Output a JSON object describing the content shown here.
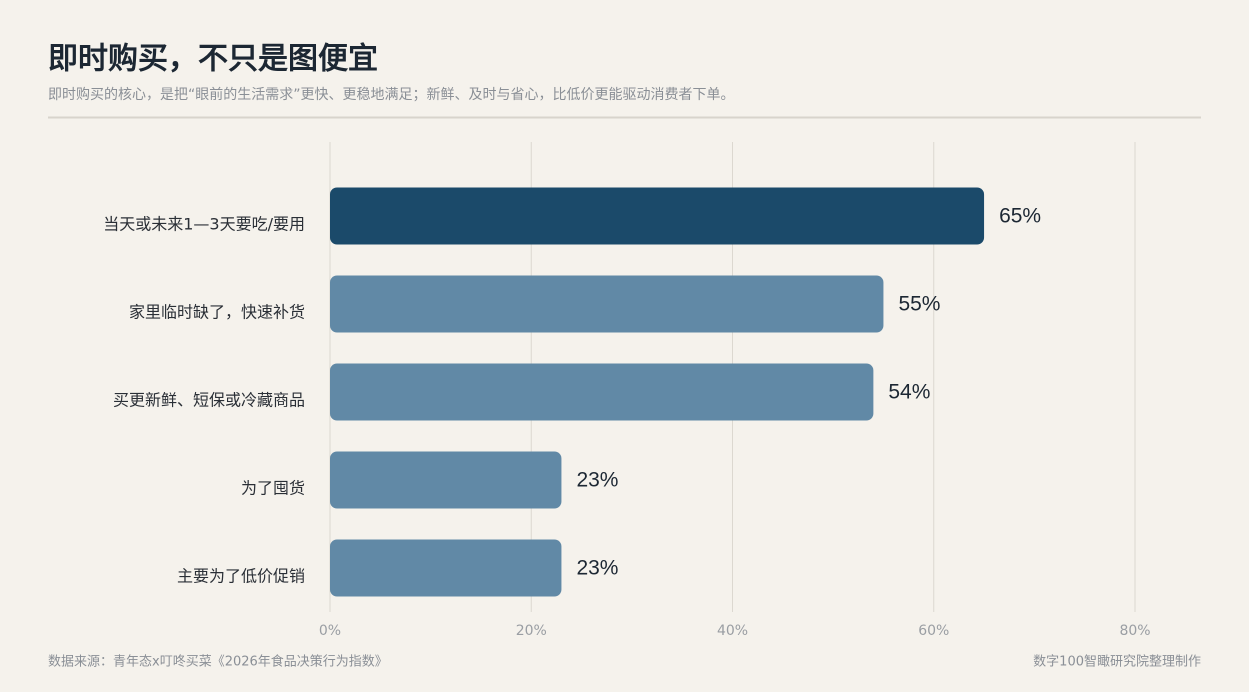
{
  "chart_data": {
    "type": "bar",
    "orientation": "horizontal",
    "title": "即时购买，不只是图便宜",
    "subtitle": "即时购买的核心，是把“眼前的生活需求”更快、更稳地满足；新鲜、及时与省心，比低价更能驱动消费者下单。",
    "categories": [
      "当天或未来1—3天要吃/要用",
      "家里临时缺了，快速补货",
      "买更新鲜、短保或冷藏商品",
      "为了囤货",
      "主要为了低价促销"
    ],
    "values": [
      65,
      55,
      54,
      23,
      23
    ],
    "value_labels": [
      "65%",
      "55%",
      "54%",
      "23%",
      "23%"
    ],
    "colors": [
      "#1b4a6a",
      "#6189a6",
      "#6189a6",
      "#6189a6",
      "#6189a6"
    ],
    "xlim": [
      0,
      80
    ],
    "xticks": [
      {
        "value": 0,
        "label": "0%"
      },
      {
        "value": 20,
        "label": "20%"
      },
      {
        "value": 40,
        "label": "40%"
      },
      {
        "value": 60,
        "label": "60%"
      },
      {
        "value": 80,
        "label": "80%"
      }
    ],
    "grid": true,
    "source": "数据来源：青年态x叮咚买菜《2026年食品决策行为指数》",
    "credit": "数字100智瞰研究院整理制作"
  }
}
